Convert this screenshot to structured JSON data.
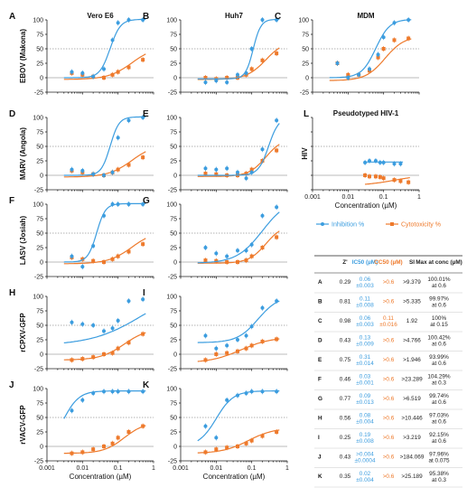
{
  "colors": {
    "inhibition": "#3c9ddf",
    "cytotoxicity": "#ee7a2c",
    "axis": "#222222"
  },
  "chart_data": {
    "type": "scatter",
    "x_scale": "log",
    "xlim": [
      0.001,
      1
    ],
    "ylim": [
      -25,
      100
    ],
    "x_ticks": [
      "0.001",
      "0.01",
      "0.1",
      "1"
    ],
    "y_ticks": [
      "-25",
      "0",
      "25",
      "50",
      "75",
      "100"
    ],
    "xlabel": "Concentration (µM)",
    "column_titles": [
      "Vero E6",
      "Huh7",
      "MDM"
    ],
    "legend": {
      "inhibition": "Inhibition %",
      "cytotoxicity": "Cytotoxicity %",
      "position": "below-L"
    },
    "panels": [
      {
        "id": "A",
        "ylabel": "EBOV (Makona)",
        "title": "Vero E6",
        "inh": {
          "x": [
            0.005,
            0.01,
            0.02,
            0.04,
            0.07,
            0.1,
            0.2,
            0.5
          ],
          "y": [
            10,
            8,
            2,
            15,
            65,
            95,
            100,
            100
          ],
          "fit": {
            "ec50": 0.06,
            "h": 3,
            "top": 101,
            "bottom": 0
          }
        },
        "cyt": {
          "x": [
            0.005,
            0.01,
            0.02,
            0.04,
            0.07,
            0.1,
            0.2,
            0.5
          ],
          "y": [
            8,
            5,
            2,
            0,
            5,
            10,
            18,
            31
          ],
          "fit": {
            "ec50": 0.25,
            "h": 1.3,
            "top": 55,
            "bottom": -3
          }
        }
      },
      {
        "id": "B",
        "title": "Huh7",
        "inh": {
          "x": [
            0.005,
            0.01,
            0.02,
            0.04,
            0.07,
            0.1,
            0.2,
            0.5
          ],
          "y": [
            -8,
            -5,
            -8,
            5,
            8,
            50,
            100,
            100
          ],
          "fit": {
            "ec50": 0.11,
            "h": 4,
            "top": 101,
            "bottom": -2
          }
        },
        "cyt": {
          "x": [
            0.005,
            0.01,
            0.02,
            0.04,
            0.07,
            0.1,
            0.2,
            0.5
          ],
          "y": [
            0,
            -2,
            0,
            0,
            5,
            15,
            30,
            42
          ],
          "fit": {
            "ec50": 0.25,
            "h": 1.6,
            "top": 65,
            "bottom": -3
          }
        }
      },
      {
        "id": "C",
        "title": "MDM",
        "inh": {
          "x": [
            0.005,
            0.01,
            0.02,
            0.04,
            0.07,
            0.1,
            0.2,
            0.5
          ],
          "y": [
            25,
            0,
            5,
            15,
            40,
            70,
            95,
            100
          ],
          "fit": {
            "ec50": 0.06,
            "h": 2.2,
            "top": 101,
            "bottom": 0
          }
        },
        "cyt": {
          "x": [
            0.005,
            0.01,
            0.02,
            0.04,
            0.07,
            0.1,
            0.2,
            0.5
          ],
          "y": [
            25,
            5,
            5,
            12,
            35,
            50,
            65,
            68
          ],
          "fit": {
            "ec50": 0.11,
            "h": 1.6,
            "top": 72,
            "bottom": -5
          }
        }
      },
      {
        "id": "D",
        "ylabel": "MARV (Angola)",
        "inh": {
          "x": [
            0.005,
            0.01,
            0.02,
            0.04,
            0.07,
            0.1,
            0.2,
            0.5
          ],
          "y": [
            10,
            8,
            2,
            0,
            5,
            65,
            95,
            100
          ],
          "fit": {
            "ec50": 0.06,
            "h": 3.5,
            "top": 101,
            "bottom": 0
          }
        },
        "cyt": {
          "x": [
            0.005,
            0.01,
            0.02,
            0.04,
            0.07,
            0.1,
            0.2,
            0.5
          ],
          "y": [
            8,
            5,
            2,
            0,
            5,
            10,
            18,
            31
          ],
          "fit": {
            "ec50": 0.25,
            "h": 1.3,
            "top": 55,
            "bottom": -3
          }
        }
      },
      {
        "id": "E",
        "inh": {
          "x": [
            0.005,
            0.01,
            0.02,
            0.04,
            0.07,
            0.1,
            0.2,
            0.5
          ],
          "y": [
            12,
            10,
            12,
            5,
            -5,
            5,
            45,
            95
          ],
          "fit": {
            "ec50": 0.3,
            "h": 3,
            "top": 101,
            "bottom": 0
          }
        },
        "cyt": {
          "x": [
            0.005,
            0.01,
            0.02,
            0.04,
            0.07,
            0.1,
            0.2,
            0.5
          ],
          "y": [
            3,
            2,
            0,
            0,
            3,
            10,
            25,
            43
          ],
          "fit": {
            "ec50": 0.25,
            "h": 1.8,
            "top": 65,
            "bottom": -2
          }
        }
      },
      {
        "id": "F",
        "ylabel": "LASV (Josiah)",
        "inh": {
          "x": [
            0.005,
            0.01,
            0.02,
            0.04,
            0.07,
            0.1,
            0.2,
            0.5
          ],
          "y": [
            10,
            -8,
            28,
            80,
            100,
            100,
            100,
            100
          ],
          "fit": {
            "ec50": 0.025,
            "h": 3.5,
            "top": 101,
            "bottom": 0
          }
        },
        "cyt": {
          "x": [
            0.005,
            0.01,
            0.02,
            0.04,
            0.07,
            0.1,
            0.2,
            0.5
          ],
          "y": [
            8,
            5,
            2,
            0,
            5,
            10,
            18,
            31
          ],
          "fit": {
            "ec50": 0.25,
            "h": 1.3,
            "top": 55,
            "bottom": -3
          }
        }
      },
      {
        "id": "G",
        "inh": {
          "x": [
            0.005,
            0.01,
            0.02,
            0.04,
            0.07,
            0.1,
            0.2,
            0.5
          ],
          "y": [
            25,
            15,
            10,
            20,
            20,
            30,
            80,
            95
          ],
          "fit": {
            "ec50": 0.2,
            "h": 1.2,
            "top": 110,
            "bottom": -2
          }
        },
        "cyt": {
          "x": [
            0.005,
            0.01,
            0.02,
            0.04,
            0.07,
            0.1,
            0.2,
            0.5
          ],
          "y": [
            3,
            2,
            0,
            0,
            3,
            10,
            25,
            43
          ],
          "fit": {
            "ec50": 0.25,
            "h": 1.8,
            "top": 65,
            "bottom": -2
          }
        }
      },
      {
        "id": "H",
        "ylabel": "rCPXV-GFP",
        "inh": {
          "x": [
            0.005,
            0.01,
            0.02,
            0.04,
            0.07,
            0.1,
            0.2,
            0.5
          ],
          "y": [
            55,
            52,
            50,
            40,
            45,
            58,
            92,
            95
          ],
          "fit": {
            "ec50": 0.5,
            "h": 0.6,
            "top": 120,
            "bottom": 15
          }
        },
        "cyt": {
          "x": [
            0.005,
            0.01,
            0.02,
            0.04,
            0.07,
            0.1,
            0.2,
            0.5
          ],
          "y": [
            -10,
            -8,
            -5,
            0,
            2,
            10,
            20,
            35
          ],
          "fit": {
            "ec50": 0.15,
            "h": 1.3,
            "top": 45,
            "bottom": -10
          }
        }
      },
      {
        "id": "I",
        "inh": {
          "x": [
            0.005,
            0.01,
            0.02,
            0.04,
            0.07,
            0.1,
            0.2,
            0.5
          ],
          "y": [
            32,
            10,
            15,
            25,
            32,
            48,
            80,
            92
          ],
          "fit": {
            "ec50": 0.15,
            "h": 1.5,
            "top": 101,
            "bottom": 20
          }
        },
        "cyt": {
          "x": [
            0.005,
            0.01,
            0.02,
            0.04,
            0.07,
            0.1,
            0.2,
            0.5
          ],
          "y": [
            -10,
            0,
            2,
            5,
            10,
            15,
            22,
            26
          ],
          "fit": {
            "ec50": 0.05,
            "h": 1.0,
            "top": 30,
            "bottom": -15
          }
        }
      },
      {
        "id": "J",
        "ylabel": "rVACV-GFP",
        "inh": {
          "x": [
            0.005,
            0.01,
            0.02,
            0.04,
            0.07,
            0.1,
            0.2,
            0.5
          ],
          "y": [
            62,
            80,
            92,
            95,
            95,
            95,
            95,
            95
          ],
          "fit": {
            "ec50": 0.003,
            "h": 2,
            "top": 96,
            "bottom": 0
          }
        },
        "cyt": {
          "x": [
            0.005,
            0.01,
            0.02,
            0.04,
            0.07,
            0.1,
            0.2,
            0.5
          ],
          "y": [
            -12,
            -10,
            -5,
            0,
            5,
            15,
            25,
            35
          ],
          "fit": {
            "ec50": 0.15,
            "h": 1.5,
            "top": 42,
            "bottom": -12
          }
        }
      },
      {
        "id": "K",
        "inh": {
          "x": [
            0.005,
            0.01,
            0.02,
            0.04,
            0.07,
            0.1,
            0.2,
            0.5
          ],
          "y": [
            35,
            15,
            80,
            88,
            92,
            95,
            95,
            95
          ],
          "fit": {
            "ec50": 0.01,
            "h": 1.8,
            "top": 96,
            "bottom": 0
          }
        },
        "cyt": {
          "x": [
            0.005,
            0.01,
            0.02,
            0.04,
            0.07,
            0.1,
            0.2,
            0.5
          ],
          "y": [
            -10,
            -5,
            -2,
            0,
            5,
            10,
            18,
            25
          ],
          "fit": {
            "ec50": 0.08,
            "h": 1.2,
            "top": 32,
            "bottom": -12
          }
        }
      },
      {
        "id": "L",
        "ylabel": "HIV",
        "title": "Pseudotyped HIV-1",
        "inh": {
          "x": [
            0.03,
            0.04,
            0.06,
            0.08,
            0.1,
            0.2,
            0.3
          ],
          "y": [
            22,
            25,
            25,
            22,
            22,
            20,
            20
          ],
          "fit": {
            "flat": 23,
            "from": 0.03,
            "to": 0.35
          }
        },
        "cyt": {
          "x": [
            0.03,
            0.04,
            0.06,
            0.08,
            0.1,
            0.2,
            0.3,
            0.5
          ],
          "y": [
            0,
            -2,
            -2,
            -3,
            -5,
            -8,
            -10,
            -12
          ],
          "fit": {
            "ec50": 0.2,
            "h": 1.0,
            "top": 1,
            "bottom": -18,
            "from": 0.03,
            "to": 0.55
          }
        }
      }
    ]
  },
  "table": {
    "headers": [
      "Z'",
      "IC50 (µM)",
      "CC50 (µM)",
      "SI",
      "Max at conc (µM)"
    ],
    "rows": [
      [
        "A",
        "0.29",
        "0.06 ±0.003",
        ">0.6",
        ">9.379",
        "100.01% at 0.6"
      ],
      [
        "B",
        "0.81",
        "0.11 ±0.008",
        ">0.6",
        ">5.335",
        "99.97% at 0.6"
      ],
      [
        "C",
        "0.98",
        "0.06 ±0.003",
        "0.11 ±0.016",
        "1.92",
        "100% at 0.15"
      ],
      [
        "D",
        "0.43",
        "0.13 ±0.009",
        ">0.6",
        ">4.766",
        "100.42% at 0.6"
      ],
      [
        "E",
        "0.75",
        "0.31 ±0.014",
        ">0.6",
        ">1.946",
        "93.99% at 0.6"
      ],
      [
        "F",
        "0.46",
        "0.03 ±0.001",
        ">0.6",
        ">23.289",
        "104.29% at 0.3"
      ],
      [
        "G",
        "0.77",
        "0.09 ±0.013",
        ">0.6",
        ">6.519",
        "99.74% at 0.6"
      ],
      [
        "H",
        "0.56",
        "0.08 ±0.004",
        ">0.6",
        ">10.446",
        "97.03% at 0.6"
      ],
      [
        "I",
        "0.25",
        "0.19 ±0.008",
        ">0.6",
        ">3.219",
        "92.15% at 0.6"
      ],
      [
        "J",
        "0.43",
        ">0.004 ±0.0004",
        ">0.6",
        ">184.069",
        "97.96% at 0.075"
      ],
      [
        "K",
        "0.35",
        "0.02 ±0.004",
        ">0.6",
        ">25.189",
        "95.38% at 0.3"
      ]
    ]
  }
}
